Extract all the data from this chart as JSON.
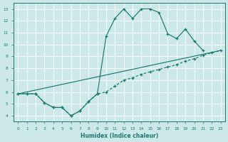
{
  "xlabel": "Humidex (Indice chaleur)",
  "bg_color": "#cce8e8",
  "line_color": "#1a7a6e",
  "grid_color": "#ffffff",
  "xlim": [
    -0.5,
    23.5
  ],
  "ylim": [
    3.5,
    13.5
  ],
  "xticks": [
    0,
    1,
    2,
    3,
    4,
    5,
    6,
    7,
    8,
    9,
    10,
    11,
    12,
    13,
    14,
    15,
    16,
    17,
    18,
    19,
    20,
    21,
    22,
    23
  ],
  "yticks": [
    4,
    5,
    6,
    7,
    8,
    9,
    10,
    11,
    12,
    13
  ],
  "line1_x": [
    0,
    1,
    2,
    3,
    4,
    5,
    6,
    7,
    8,
    9,
    10,
    11,
    12,
    13,
    14,
    15,
    16,
    17,
    18,
    19,
    20,
    21,
    22,
    23
  ],
  "line1_y": [
    5.85,
    5.85,
    5.85,
    5.1,
    4.7,
    4.7,
    4.0,
    4.4,
    5.2,
    5.85,
    10.7,
    12.2,
    13.0,
    12.2,
    13.0,
    13.0,
    12.7,
    10.9,
    10.5,
    11.3,
    10.3,
    9.5,
    null,
    null
  ],
  "line2_x": [
    0,
    23
  ],
  "line2_y": [
    5.85,
    9.5
  ],
  "line3_x": [
    0,
    1,
    2,
    3,
    4,
    5,
    6,
    7,
    8,
    9,
    10,
    11,
    12,
    13,
    14,
    15,
    16,
    17,
    18,
    19,
    20,
    21,
    22,
    23
  ],
  "line3_y": [
    5.85,
    5.85,
    5.85,
    5.1,
    4.7,
    4.7,
    4.0,
    4.4,
    5.2,
    5.85,
    6.0,
    6.5,
    7.0,
    7.2,
    7.5,
    7.7,
    7.9,
    8.1,
    8.3,
    8.6,
    8.8,
    9.1,
    9.3,
    9.5
  ]
}
